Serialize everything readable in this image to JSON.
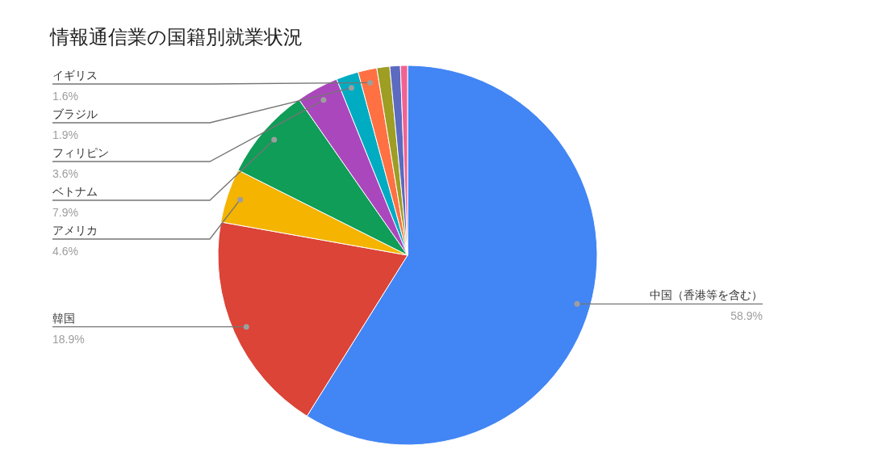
{
  "chart_data": {
    "type": "pie",
    "title": "情報通信業の国籍別就業状況",
    "categories": [
      "中国（香港等を含む）",
      "韓国",
      "アメリカ",
      "ベトナム",
      "フィリピン",
      "ブラジル",
      "イギリス",
      null,
      null,
      null
    ],
    "values": [
      58.9,
      18.9,
      4.6,
      7.9,
      3.6,
      1.9,
      1.6,
      1.1,
      0.9,
      0.6
    ],
    "value_labels": [
      "58.9%",
      "18.9%",
      "4.6%",
      "7.9%",
      "3.6%",
      "1.9%",
      "1.6%",
      null,
      null,
      null
    ],
    "colors": [
      "#4285f4",
      "#db4437",
      "#f4b400",
      "#0f9d58",
      "#ab47bc",
      "#00acc1",
      "#ff7043",
      "#9e9d24",
      "#5c6bc0",
      "#f06292"
    ]
  }
}
